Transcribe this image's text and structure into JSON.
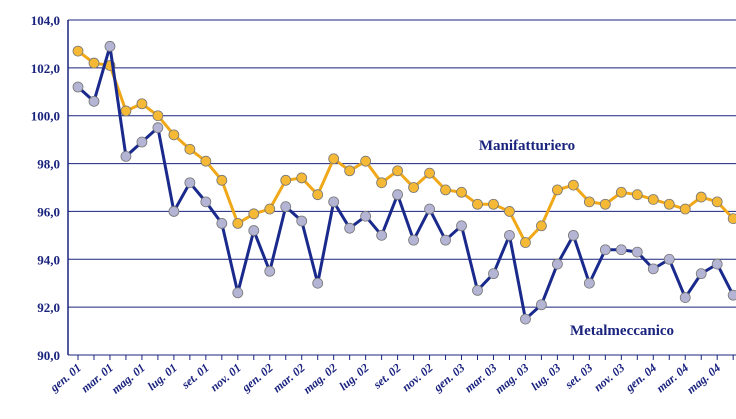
{
  "chart_data": {
    "type": "line",
    "categories": [
      "gen. 01",
      null,
      "mar. 01",
      null,
      "mag. 01",
      null,
      "lug. 01",
      null,
      "set. 01",
      null,
      "nov. 01",
      null,
      "gen. 02",
      null,
      "mar. 02",
      null,
      "mag. 02",
      null,
      "lug. 02",
      null,
      "set. 02",
      null,
      "nov. 02",
      null,
      "gen. 03",
      null,
      "mar. 03",
      null,
      "mag. 03",
      null,
      "lug. 03",
      null,
      "set. 03",
      null,
      "nov. 03",
      null,
      "gen. 04",
      null,
      "mar. 04",
      null,
      "mag. 04",
      null
    ],
    "series": [
      {
        "name": "Manifatturiero",
        "color": "#f0a818",
        "marker": "#f5b935",
        "values": [
          102.7,
          102.2,
          102.1,
          100.2,
          100.5,
          100.0,
          99.2,
          98.6,
          98.1,
          97.3,
          95.5,
          95.9,
          96.1,
          97.3,
          97.4,
          96.7,
          98.2,
          97.7,
          98.1,
          97.2,
          97.7,
          97.0,
          97.6,
          96.9,
          96.8,
          96.3,
          96.3,
          96.0,
          94.7,
          95.4,
          96.9,
          97.1,
          96.4,
          96.3,
          96.8,
          96.7,
          96.5,
          96.3,
          96.1,
          96.6,
          96.4,
          95.7
        ]
      },
      {
        "name": "Metalmeccanico",
        "color": "#1a2a8c",
        "marker": "#b4b4d4",
        "values": [
          101.2,
          100.6,
          102.9,
          98.3,
          98.9,
          99.5,
          96.0,
          97.2,
          96.4,
          95.5,
          92.6,
          95.2,
          93.5,
          96.2,
          95.6,
          93.0,
          96.4,
          95.3,
          95.8,
          95.0,
          96.7,
          94.8,
          96.1,
          94.8,
          95.4,
          92.7,
          93.4,
          95.0,
          91.5,
          92.1,
          93.8,
          95.0,
          93.0,
          94.4,
          94.4,
          94.3,
          93.6,
          94.0,
          92.4,
          93.4,
          93.8,
          92.5
        ]
      }
    ],
    "ylim": [
      90,
      104
    ],
    "yticks": [
      {
        "value": 90,
        "label": "90,0"
      },
      {
        "value": 92,
        "label": "92,0"
      },
      {
        "value": 94,
        "label": "94,0"
      },
      {
        "value": 96,
        "label": "96,0"
      },
      {
        "value": 98,
        "label": "98,0"
      },
      {
        "value": 100,
        "label": "100,0"
      },
      {
        "value": 102,
        "label": "102,0"
      },
      {
        "value": 104,
        "label": "104,0"
      }
    ],
    "grid": true
  }
}
